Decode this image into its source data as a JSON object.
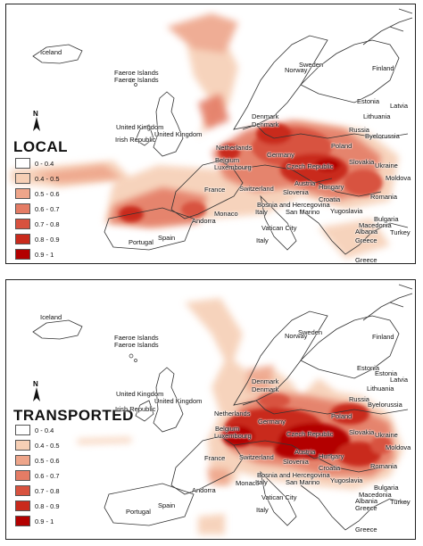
{
  "panels": [
    {
      "id": "local",
      "title": "LOCAL",
      "labels": [
        "Iceland",
        "Faeroe Islands",
        "Faeroe Islands",
        "Norway",
        "Sweden",
        "Finland",
        "Estonia",
        "Latvia",
        "Lithuania",
        "Russia",
        "Byelorussia",
        "Denmark",
        "Denmark",
        "United Kingdom",
        "United Kingdom",
        "Irish Republic",
        "Netherlands",
        "Germany",
        "Poland",
        "Belgium",
        "Luxembourg",
        "Czech Republic",
        "Slovakia",
        "Ukraine",
        "France",
        "Switzerland",
        "Austria",
        "Hungary",
        "Moldova",
        "Romania",
        "Slovenia",
        "Croatia",
        "Andorra",
        "Monaco",
        "Bosnia and Hercegovina",
        "Italy",
        "San Marino",
        "Yugoslavia",
        "Bulgaria",
        "Macedonia",
        "Albania",
        "Turkey",
        "Vatican City",
        "Greece",
        "Portugal",
        "Spain",
        "Italy",
        "Greece"
      ]
    },
    {
      "id": "transported",
      "title": "TRANSPORTED",
      "labels": [
        "Iceland",
        "Faeroe Islands",
        "Faeroe Islands",
        "Norway",
        "Sweden",
        "Finland",
        "Estonia",
        "Estonia",
        "Latvia",
        "Lithuania",
        "Russia",
        "Byelorussia",
        "Denmark",
        "Denmark",
        "United Kingdom",
        "United Kingdom",
        "Irish Republic",
        "Netherlands",
        "Germany",
        "Poland",
        "Belgium",
        "Luxembourg",
        "Czech Republic",
        "Slovakia",
        "Ukraine",
        "France",
        "Switzerland",
        "Austria",
        "Hungary",
        "Moldova",
        "Romania",
        "Slovenia",
        "Croatia",
        "Andorra",
        "Monaco",
        "Bosnia and Hercegovina",
        "Italy",
        "San Marino",
        "Yugoslavia",
        "Bulgaria",
        "Macedonia",
        "Albania",
        "Turkey",
        "Vatican City",
        "Greece",
        "Portugal",
        "Spain",
        "Italy",
        "Greece"
      ]
    }
  ],
  "legend": {
    "classes": [
      {
        "label": "0 - 0.4",
        "color": "#ffffff"
      },
      {
        "label": "0.4 - 0.5",
        "color": "#f6cfb5"
      },
      {
        "label": "0.5 - 0.6",
        "color": "#eea58a"
      },
      {
        "label": "0.6 - 0.7",
        "color": "#e47c65"
      },
      {
        "label": "0.7 - 0.8",
        "color": "#d8523f"
      },
      {
        "label": "0.8 - 0.9",
        "color": "#c92a1c"
      },
      {
        "label": "0.9 - 1",
        "color": "#b30000"
      }
    ]
  },
  "north_arrow": "N"
}
